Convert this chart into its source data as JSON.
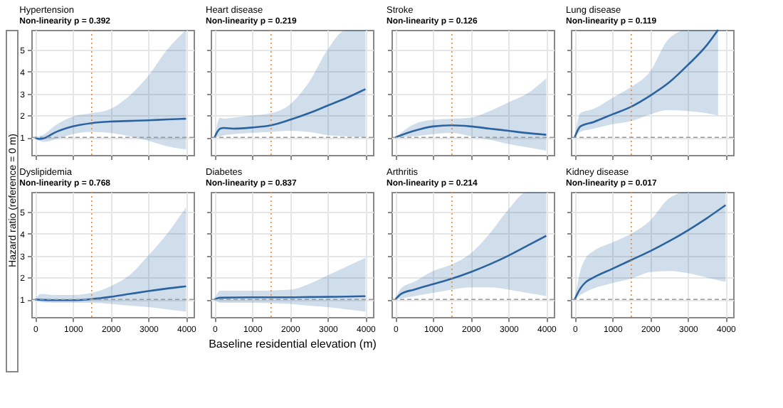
{
  "chart_data": [
    {
      "type": "line",
      "title": "Hypertension",
      "subtitle": "Non-linearity p = 0.392",
      "ylabel": "Hazard ratio (reference = 0 m)",
      "xlim": [
        -100,
        4200
      ],
      "ylim": [
        0.2,
        5.9
      ],
      "xticks": [
        0,
        1000,
        2000,
        3000,
        4000
      ],
      "yticks": [
        1,
        2,
        3,
        4,
        5
      ],
      "grid": true,
      "tick_labels": "y",
      "series": [
        {
          "color": "#2b63a0",
          "x": [
            0,
            100,
            250,
            500,
            1000,
            1500,
            2000,
            2500,
            3000,
            3500,
            4000
          ],
          "values": [
            1.0,
            0.93,
            0.97,
            1.2,
            1.5,
            1.65,
            1.72,
            1.75,
            1.78,
            1.82,
            1.85
          ],
          "lower": [
            1.0,
            0.85,
            0.8,
            0.9,
            1.15,
            1.25,
            1.2,
            1.05,
            0.85,
            0.6,
            0.45
          ],
          "upper": [
            1.0,
            1.05,
            1.15,
            1.5,
            1.95,
            2.1,
            2.3,
            2.9,
            3.8,
            5.0,
            5.9
          ]
        }
      ],
      "ref_lines": [
        {
          "axis": "x",
          "value": 1500,
          "color": "#e08a3c",
          "line_style": "dotted"
        },
        {
          "axis": "y",
          "value": 1,
          "color": "#999999",
          "line_style": "dashed"
        }
      ]
    },
    {
      "type": "line",
      "title": "Dyslipidemia",
      "subtitle": "Non-linearity p = 0.768",
      "xlim": [
        -100,
        4200
      ],
      "ylim": [
        0.2,
        5.9
      ],
      "xticks": [
        0,
        1000,
        2000,
        3000,
        4000
      ],
      "yticks": [
        1,
        2,
        3,
        4,
        5
      ],
      "grid": true,
      "series": [
        {
          "color": "#2b63a0",
          "x": [
            0,
            150,
            500,
            1000,
            1500,
            2000,
            2500,
            3000,
            3500,
            4000
          ],
          "values": [
            1.0,
            0.99,
            0.97,
            0.97,
            1.02,
            1.12,
            1.25,
            1.38,
            1.5,
            1.6
          ],
          "lower": [
            1.0,
            0.88,
            0.85,
            0.85,
            0.85,
            0.8,
            0.72,
            0.65,
            0.55,
            0.45
          ],
          "upper": [
            1.0,
            1.25,
            1.2,
            1.2,
            1.3,
            1.6,
            2.1,
            3.0,
            4.0,
            5.2
          ]
        }
      ],
      "ref_lines": [
        {
          "axis": "x",
          "value": 1500,
          "color": "#e08a3c",
          "line_style": "dotted"
        },
        {
          "axis": "y",
          "value": 1,
          "color": "#999999",
          "line_style": "dashed"
        }
      ]
    },
    {
      "type": "line",
      "title": "Heart disease",
      "subtitle": "Non-linearity p = 0.219",
      "xlim": [
        -100,
        4200
      ],
      "ylim": [
        0.2,
        5.9
      ],
      "xticks": [
        0,
        1000,
        2000,
        3000,
        4000
      ],
      "yticks": [
        1,
        2,
        3,
        4,
        5
      ],
      "grid": true,
      "tick_labels": false,
      "series": [
        {
          "color": "#2b63a0",
          "x": [
            0,
            150,
            250,
            500,
            1000,
            1500,
            2000,
            2500,
            3000,
            3500,
            4000
          ],
          "values": [
            1.0,
            1.4,
            1.43,
            1.4,
            1.45,
            1.55,
            1.8,
            2.1,
            2.45,
            2.8,
            3.2
          ],
          "lower": [
            1.0,
            1.05,
            1.1,
            1.15,
            1.2,
            1.25,
            1.3,
            1.25,
            1.1,
            1.05,
            1.0
          ],
          "upper": [
            1.0,
            1.9,
            1.85,
            1.9,
            2.0,
            2.1,
            2.5,
            3.5,
            5.0,
            5.9,
            5.9
          ]
        }
      ],
      "ref_lines": [
        {
          "axis": "x",
          "value": 1500,
          "color": "#e08a3c",
          "line_style": "dotted"
        },
        {
          "axis": "y",
          "value": 1,
          "color": "#999999",
          "line_style": "dashed"
        }
      ]
    },
    {
      "type": "line",
      "title": "Diabetes",
      "subtitle": "Non-linearity p = 0.837",
      "xlabel": "Baseline residential elevation (m)",
      "xlim": [
        -100,
        4200
      ],
      "ylim": [
        0.2,
        5.9
      ],
      "xticks": [
        0,
        1000,
        2000,
        3000,
        4000
      ],
      "yticks": [
        1,
        2,
        3,
        4,
        5
      ],
      "grid": true,
      "tick_labels": "x",
      "series": [
        {
          "color": "#2b63a0",
          "x": [
            0,
            150,
            1000,
            2000,
            2500,
            3000,
            3500,
            4000
          ],
          "values": [
            1.0,
            1.08,
            1.1,
            1.1,
            1.11,
            1.12,
            1.13,
            1.15
          ],
          "lower": [
            1.0,
            0.85,
            0.85,
            0.8,
            0.72,
            0.65,
            0.55,
            0.45
          ],
          "upper": [
            1.0,
            1.4,
            1.4,
            1.45,
            1.7,
            2.1,
            2.5,
            2.9
          ]
        }
      ],
      "ref_lines": [
        {
          "axis": "x",
          "value": 1500,
          "color": "#e08a3c",
          "line_style": "dotted"
        },
        {
          "axis": "y",
          "value": 1,
          "color": "#999999",
          "line_style": "dashed"
        }
      ]
    },
    {
      "type": "line",
      "title": "Stroke",
      "subtitle": "Non-linearity p = 0.126",
      "xlim": [
        -100,
        4200
      ],
      "ylim": [
        0.2,
        5.9
      ],
      "xticks": [
        0,
        1000,
        2000,
        3000,
        4000
      ],
      "yticks": [
        1,
        2,
        3,
        4,
        5
      ],
      "grid": true,
      "tick_labels": false,
      "series": [
        {
          "color": "#2b63a0",
          "x": [
            0,
            500,
            1000,
            1500,
            2000,
            2500,
            3000,
            3500,
            4000
          ],
          "values": [
            1.0,
            1.3,
            1.5,
            1.55,
            1.5,
            1.4,
            1.3,
            1.2,
            1.12
          ],
          "lower": [
            1.0,
            1.05,
            1.15,
            1.2,
            1.05,
            0.9,
            0.7,
            0.55,
            0.4
          ],
          "upper": [
            1.0,
            1.6,
            1.8,
            1.85,
            1.9,
            2.2,
            2.6,
            3.0,
            3.7
          ]
        }
      ],
      "ref_lines": [
        {
          "axis": "x",
          "value": 1500,
          "color": "#e08a3c",
          "line_style": "dotted"
        },
        {
          "axis": "y",
          "value": 1,
          "color": "#999999",
          "line_style": "dashed"
        }
      ]
    },
    {
      "type": "line",
      "title": "Arthritis",
      "subtitle": "Non-linearity p = 0.214",
      "xlim": [
        -100,
        4200
      ],
      "ylim": [
        0.2,
        5.9
      ],
      "xticks": [
        0,
        1000,
        2000,
        3000,
        4000
      ],
      "yticks": [
        1,
        2,
        3,
        4,
        5
      ],
      "grid": true,
      "tick_labels": "x",
      "series": [
        {
          "color": "#2b63a0",
          "x": [
            0,
            150,
            500,
            1000,
            1500,
            2000,
            2500,
            3000,
            3500,
            4000
          ],
          "values": [
            1.0,
            1.25,
            1.45,
            1.7,
            1.95,
            2.25,
            2.6,
            3.0,
            3.45,
            3.9
          ],
          "lower": [
            1.0,
            1.05,
            1.15,
            1.3,
            1.45,
            1.55,
            1.55,
            1.45,
            1.3,
            1.15
          ],
          "upper": [
            1.0,
            1.5,
            1.8,
            2.3,
            2.6,
            3.1,
            4.0,
            5.1,
            5.9,
            5.9
          ]
        }
      ],
      "ref_lines": [
        {
          "axis": "x",
          "value": 1500,
          "color": "#e08a3c",
          "line_style": "dotted"
        },
        {
          "axis": "y",
          "value": 1,
          "color": "#999999",
          "line_style": "dashed"
        }
      ]
    },
    {
      "type": "line",
      "title": "Lung disease",
      "subtitle": "Non-linearity p = 0.119",
      "xlim": [
        -100,
        4200
      ],
      "ylim": [
        0.2,
        5.9
      ],
      "xticks": [
        0,
        1000,
        2000,
        3000,
        4000
      ],
      "yticks": [
        1,
        2,
        3,
        4,
        5
      ],
      "grid": true,
      "tick_labels": false,
      "series": [
        {
          "color": "#2b63a0",
          "x": [
            0,
            150,
            500,
            1000,
            1500,
            2000,
            2500,
            3000,
            3500,
            3800
          ],
          "values": [
            1.0,
            1.5,
            1.7,
            2.05,
            2.4,
            2.9,
            3.5,
            4.3,
            5.2,
            5.9
          ],
          "lower": [
            1.0,
            1.25,
            1.4,
            1.6,
            1.75,
            2.05,
            2.25,
            2.2,
            2.1,
            2.0
          ],
          "upper": [
            1.0,
            2.1,
            2.3,
            2.8,
            3.3,
            4.0,
            5.5,
            5.9,
            5.9,
            5.9
          ]
        }
      ],
      "ref_lines": [
        {
          "axis": "x",
          "value": 1500,
          "color": "#e08a3c",
          "line_style": "dotted"
        },
        {
          "axis": "y",
          "value": 1,
          "color": "#999999",
          "line_style": "dashed"
        }
      ]
    },
    {
      "type": "line",
      "title": "Kidney disease",
      "subtitle": "Non-linearity p = 0.017",
      "xlim": [
        -100,
        4200
      ],
      "ylim": [
        0.2,
        5.9
      ],
      "xticks": [
        0,
        1000,
        2000,
        3000,
        4000
      ],
      "yticks": [
        1,
        2,
        3,
        4,
        5
      ],
      "grid": true,
      "tick_labels": "x",
      "series": [
        {
          "color": "#2b63a0",
          "x": [
            0,
            150,
            300,
            500,
            1000,
            1500,
            2000,
            2500,
            3000,
            3500,
            4000
          ],
          "values": [
            1.0,
            1.5,
            1.8,
            2.0,
            2.4,
            2.8,
            3.2,
            3.65,
            4.15,
            4.7,
            5.3
          ],
          "lower": [
            1.0,
            1.2,
            1.35,
            1.5,
            1.75,
            1.95,
            2.25,
            2.3,
            2.2,
            2.0,
            1.8
          ],
          "upper": [
            1.0,
            2.3,
            2.9,
            3.2,
            3.6,
            4.0,
            4.6,
            5.6,
            5.9,
            5.9,
            5.9
          ]
        }
      ],
      "ref_lines": [
        {
          "axis": "x",
          "value": 1500,
          "color": "#e08a3c",
          "line_style": "dotted"
        },
        {
          "axis": "y",
          "value": 1,
          "color": "#999999",
          "line_style": "dashed"
        }
      ]
    }
  ]
}
